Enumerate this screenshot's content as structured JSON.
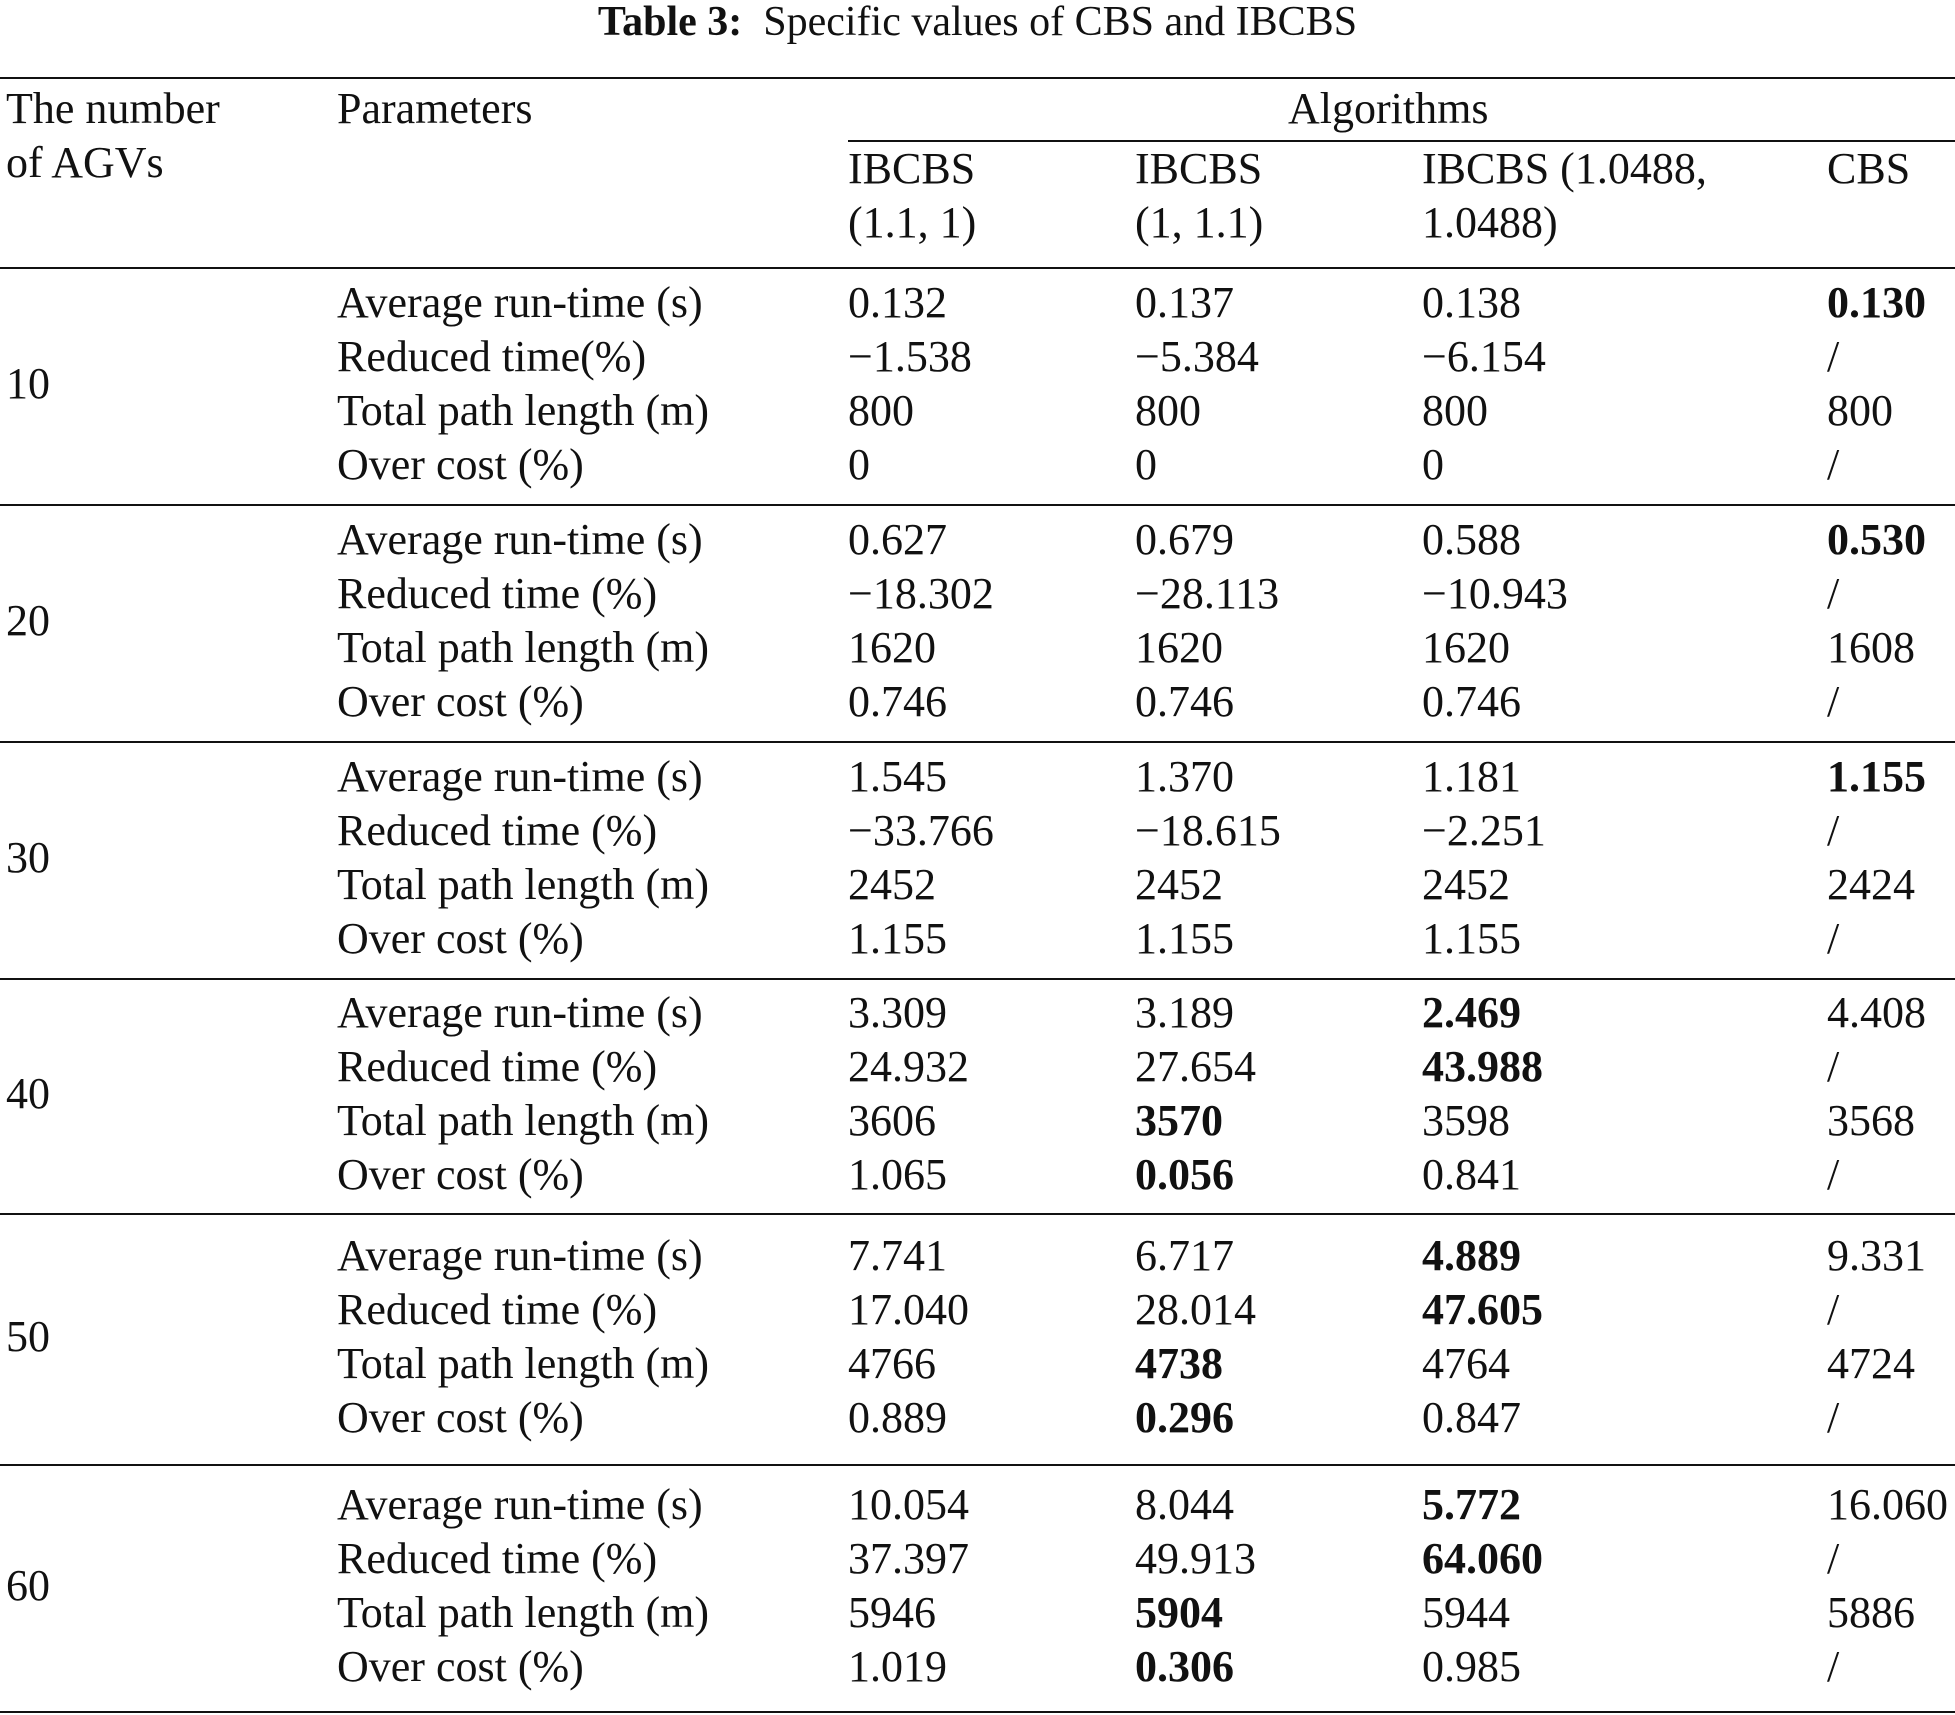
{
  "caption": {
    "label": "Table 3:",
    "text": "Specific values of CBS and IBCBS"
  },
  "header": {
    "agvs_line1": "The number",
    "agvs_line2": "of AGVs",
    "parameters": "Parameters",
    "algorithms": "Algorithms",
    "columns": [
      {
        "line1": "IBCBS",
        "line2": "(1.1, 1)"
      },
      {
        "line1": "IBCBS",
        "line2": "(1, 1.1)"
      },
      {
        "line1": "IBCBS (1.0488,",
        "line2": "1.0488)"
      },
      {
        "line1": "CBS",
        "line2": ""
      }
    ]
  },
  "groups": [
    {
      "agvs": "10",
      "rows": [
        {
          "param": "Average run-time (s)",
          "values": [
            "0.132",
            "0.137",
            "0.138",
            "0.130"
          ],
          "bold": [
            false,
            false,
            false,
            true
          ]
        },
        {
          "param": "Reduced time(%)",
          "values": [
            "−1.538",
            "−5.384",
            "−6.154",
            "/"
          ],
          "bold": [
            false,
            false,
            false,
            false
          ]
        },
        {
          "param": "Total path length (m)",
          "values": [
            "800",
            "800",
            "800",
            "800"
          ],
          "bold": [
            false,
            false,
            false,
            false
          ]
        },
        {
          "param": "Over cost (%)",
          "values": [
            "0",
            "0",
            "0",
            "/"
          ],
          "bold": [
            false,
            false,
            false,
            false
          ]
        }
      ]
    },
    {
      "agvs": "20",
      "rows": [
        {
          "param": "Average run-time (s)",
          "values": [
            "0.627",
            "0.679",
            "0.588",
            "0.530"
          ],
          "bold": [
            false,
            false,
            false,
            true
          ]
        },
        {
          "param": "Reduced time (%)",
          "values": [
            "−18.302",
            "−28.113",
            "−10.943",
            "/"
          ],
          "bold": [
            false,
            false,
            false,
            false
          ]
        },
        {
          "param": "Total path length (m)",
          "values": [
            "1620",
            "1620",
            "1620",
            "1608"
          ],
          "bold": [
            false,
            false,
            false,
            false
          ]
        },
        {
          "param": "Over cost (%)",
          "values": [
            "0.746",
            "0.746",
            "0.746",
            "/"
          ],
          "bold": [
            false,
            false,
            false,
            false
          ]
        }
      ]
    },
    {
      "agvs": "30",
      "rows": [
        {
          "param": "Average run-time (s)",
          "values": [
            "1.545",
            "1.370",
            "1.181",
            "1.155"
          ],
          "bold": [
            false,
            false,
            false,
            true
          ]
        },
        {
          "param": "Reduced time (%)",
          "values": [
            "−33.766",
            "−18.615",
            "−2.251",
            "/"
          ],
          "bold": [
            false,
            false,
            false,
            false
          ]
        },
        {
          "param": "Total path length (m)",
          "values": [
            "2452",
            "2452",
            "2452",
            "2424"
          ],
          "bold": [
            false,
            false,
            false,
            false
          ]
        },
        {
          "param": "Over cost (%)",
          "values": [
            "1.155",
            "1.155",
            "1.155",
            "/"
          ],
          "bold": [
            false,
            false,
            false,
            false
          ]
        }
      ]
    },
    {
      "agvs": "40",
      "rows": [
        {
          "param": "Average run-time (s)",
          "values": [
            "3.309",
            "3.189",
            "2.469",
            "4.408"
          ],
          "bold": [
            false,
            false,
            true,
            false
          ]
        },
        {
          "param": "Reduced time (%)",
          "values": [
            "24.932",
            "27.654",
            "43.988",
            "/"
          ],
          "bold": [
            false,
            false,
            true,
            false
          ]
        },
        {
          "param": "Total path length (m)",
          "values": [
            "3606",
            "3570",
            "3598",
            "3568"
          ],
          "bold": [
            false,
            true,
            false,
            false
          ]
        },
        {
          "param": "Over cost (%)",
          "values": [
            "1.065",
            "0.056",
            "0.841",
            "/"
          ],
          "bold": [
            false,
            true,
            false,
            false
          ]
        }
      ]
    },
    {
      "agvs": "50",
      "rows": [
        {
          "param": "Average run-time (s)",
          "values": [
            "7.741",
            "6.717",
            "4.889",
            "9.331"
          ],
          "bold": [
            false,
            false,
            true,
            false
          ]
        },
        {
          "param": "Reduced time (%)",
          "values": [
            "17.040",
            "28.014",
            "47.605",
            "/"
          ],
          "bold": [
            false,
            false,
            true,
            false
          ]
        },
        {
          "param": "Total path length (m)",
          "values": [
            "4766",
            "4738",
            "4764",
            "4724"
          ],
          "bold": [
            false,
            true,
            false,
            false
          ]
        },
        {
          "param": "Over cost (%)",
          "values": [
            "0.889",
            "0.296",
            "0.847",
            "/"
          ],
          "bold": [
            false,
            true,
            false,
            false
          ]
        }
      ]
    },
    {
      "agvs": "60",
      "rows": [
        {
          "param": "Average run-time (s)",
          "values": [
            "10.054",
            "8.044",
            "5.772",
            "16.060"
          ],
          "bold": [
            false,
            false,
            true,
            false
          ]
        },
        {
          "param": "Reduced time (%)",
          "values": [
            "37.397",
            "49.913",
            "64.060",
            "/"
          ],
          "bold": [
            false,
            false,
            true,
            false
          ]
        },
        {
          "param": "Total path length (m)",
          "values": [
            "5946",
            "5904",
            "5944",
            "5886"
          ],
          "bold": [
            false,
            true,
            false,
            false
          ]
        },
        {
          "param": "Over cost (%)",
          "values": [
            "1.019",
            "0.306",
            "0.985",
            "/"
          ],
          "bold": [
            false,
            true,
            false,
            false
          ]
        }
      ]
    }
  ]
}
